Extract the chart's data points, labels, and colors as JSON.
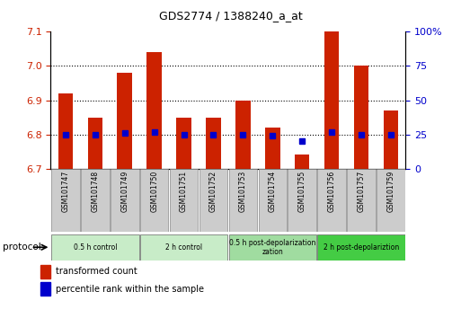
{
  "title": "GDS2774 / 1388240_a_at",
  "samples": [
    "GSM101747",
    "GSM101748",
    "GSM101749",
    "GSM101750",
    "GSM101751",
    "GSM101752",
    "GSM101753",
    "GSM101754",
    "GSM101755",
    "GSM101756",
    "GSM101757",
    "GSM101759"
  ],
  "red_values": [
    6.92,
    6.85,
    6.98,
    7.04,
    6.85,
    6.85,
    6.9,
    6.82,
    6.74,
    7.1,
    7.0,
    6.87
  ],
  "blue_values": [
    25,
    25,
    26,
    27,
    25,
    25,
    25,
    24,
    20,
    27,
    25,
    25
  ],
  "ylim_left": [
    6.7,
    7.1
  ],
  "ylim_right": [
    0,
    100
  ],
  "yticks_left": [
    6.7,
    6.8,
    6.9,
    7.0,
    7.1
  ],
  "yticks_right": [
    0,
    25,
    50,
    75,
    100
  ],
  "ytick_labels_right": [
    "0",
    "25",
    "50",
    "75",
    "100%"
  ],
  "groups": [
    {
      "label": "0.5 h control",
      "start": 0,
      "end": 3,
      "color": "#c8ecc8"
    },
    {
      "label": "2 h control",
      "start": 3,
      "end": 6,
      "color": "#c8ecc8"
    },
    {
      "label": "0.5 h post-depolarization",
      "start": 6,
      "end": 9,
      "color": "#a0dca0"
    },
    {
      "label": "2 h post-depolariztion",
      "start": 9,
      "end": 12,
      "color": "#44cc44"
    }
  ],
  "bar_color": "#cc2200",
  "dot_color": "#0000cc",
  "bar_width": 0.5,
  "sample_box_color": "#cccccc",
  "protocol_label": "protocol",
  "legend_red": "transformed count",
  "legend_blue": "percentile rank within the sample"
}
